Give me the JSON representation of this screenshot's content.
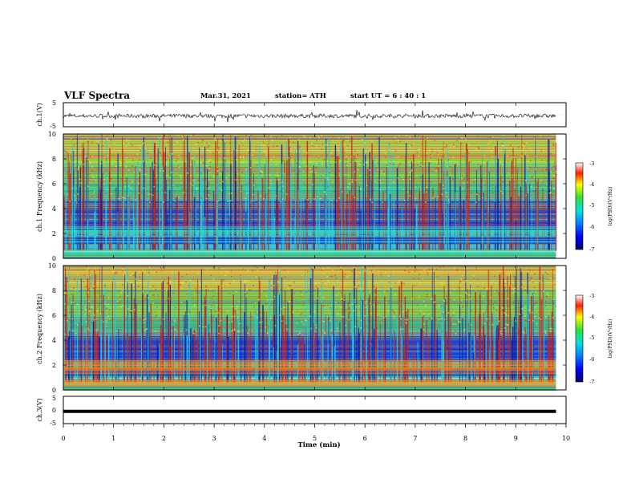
{
  "header": {
    "title": "VLF Spectra",
    "date": "Mar.31, 2021",
    "station": "station= ATH",
    "start": "start  UT  =  6 : 40 : 1"
  },
  "chart_data": [
    {
      "type": "line",
      "panel": "ch.1 waveform",
      "ylabel": "ch.1(V)",
      "ylim": [
        -5,
        5
      ],
      "y_ticks": [
        "5",
        "-5"
      ],
      "xlim": [
        0,
        10
      ],
      "series_description": "noisy trace around -0.5 V",
      "baseline": -0.5
    },
    {
      "type": "heatmap",
      "panel": "ch.1 spectrogram",
      "ylabel": "ch.1 Frequency (kHz)",
      "ylim": [
        0,
        10
      ],
      "y_ticks": [
        "0",
        "2",
        "4",
        "6",
        "8",
        "10"
      ],
      "xlim": [
        0,
        9.8
      ],
      "colorbar": {
        "label": "log(PSD)(V²/Hz)",
        "range": [
          -7,
          -3
        ],
        "ticks": [
          "-3",
          "-4",
          "-5",
          "-6",
          "-7"
        ]
      }
    },
    {
      "type": "heatmap",
      "panel": "ch.2 spectrogram",
      "ylabel": "ch.2 Frequency (kHz)",
      "ylim": [
        0,
        10
      ],
      "y_ticks": [
        "0",
        "2",
        "4",
        "6",
        "8",
        "10"
      ],
      "xlim": [
        0,
        9.8
      ],
      "colorbar": {
        "label": "log(PSD)(V²/Hz)",
        "range": [
          -7,
          -3
        ],
        "ticks": [
          "-3",
          "-4",
          "-5",
          "-6",
          "-7"
        ]
      }
    },
    {
      "type": "line",
      "panel": "ch.3 waveform",
      "ylabel": "ch.3(V)",
      "ylim": [
        -5,
        5
      ],
      "y_ticks": [
        "5",
        "0",
        "-5"
      ],
      "xlim": [
        0,
        10
      ],
      "constant_value": -0.5
    }
  ],
  "xaxis": {
    "label": "Time (min)",
    "ticks": [
      "0",
      "1",
      "2",
      "3",
      "4",
      "5",
      "6",
      "7",
      "8",
      "9",
      "10"
    ],
    "range": [
      0,
      10
    ]
  },
  "colors": {
    "frame": "#000000",
    "trace": "#000000"
  }
}
